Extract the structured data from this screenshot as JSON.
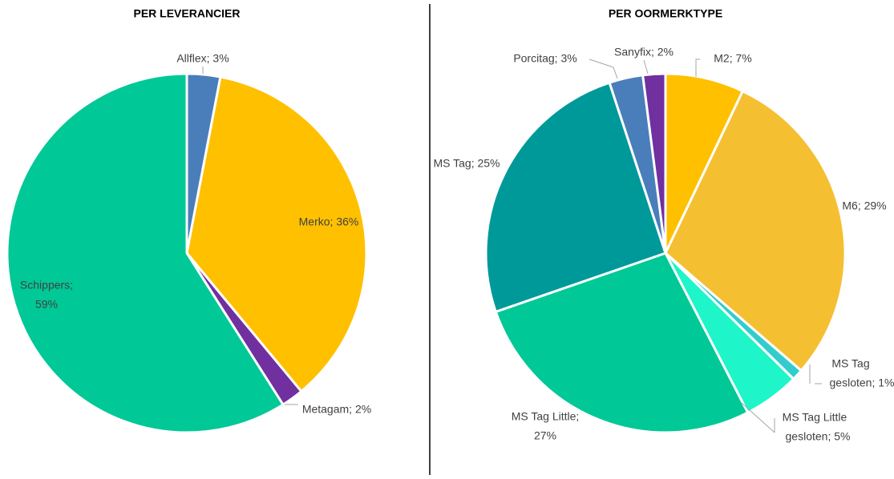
{
  "chart_data": [
    {
      "type": "pie",
      "title": "PER LEVERANCIER",
      "values": [
        3,
        36,
        2,
        59
      ],
      "colors": [
        "#4a7ebb",
        "#ffc000",
        "#7030a0",
        "#00c896"
      ],
      "value_labels": [
        [
          "Allflex; 3%"
        ],
        [
          "Merko; 36%"
        ],
        [
          "Metagam; 2%"
        ],
        [
          "Schippers;",
          "59%"
        ]
      ]
    },
    {
      "type": "pie",
      "title": "PER OORMERKTYPE",
      "values": [
        7,
        29,
        1,
        5,
        27,
        25,
        3,
        2
      ],
      "colors": [
        "#ffc000",
        "#f5bf32",
        "#33cccc",
        "#1ef5c8",
        "#00c896",
        "#009999",
        "#4a7ebb",
        "#7030a0"
      ],
      "value_labels": [
        [
          "M2;  7%"
        ],
        [
          "M6;  29%"
        ],
        [
          "MS Tag",
          "gesloten; 1%"
        ],
        [
          "MS Tag Little",
          "gesloten; 5%"
        ],
        [
          "MS Tag Little;",
          "27%"
        ],
        [
          "MS Tag; 25%"
        ],
        [
          "Porcitag; 3%"
        ],
        [
          "Sanyfix; 2%"
        ]
      ]
    }
  ]
}
